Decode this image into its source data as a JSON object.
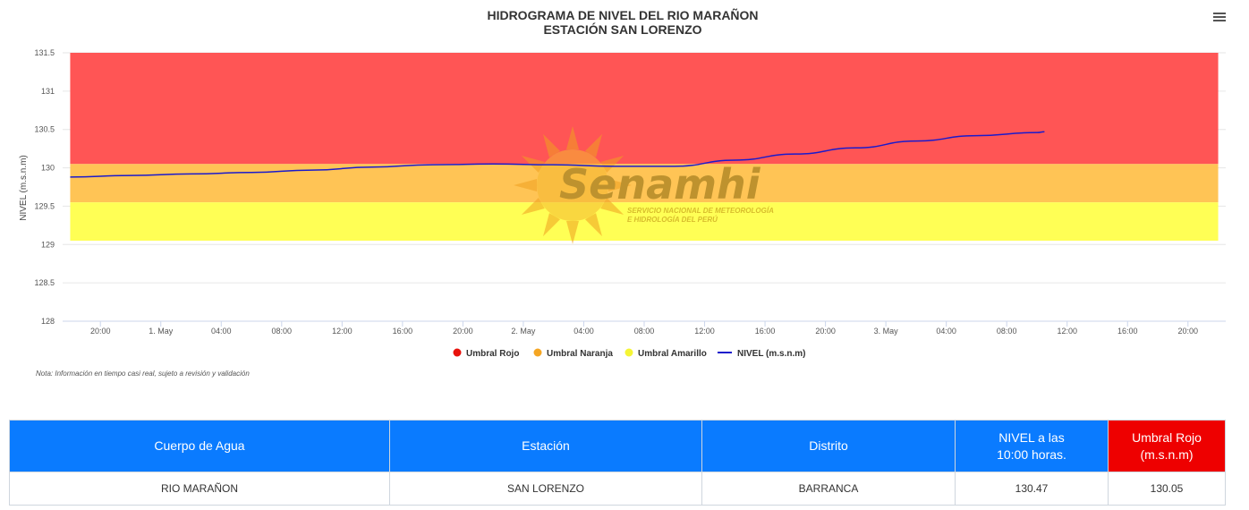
{
  "chart_data": {
    "type": "line",
    "title": "HIDROGRAMA DE NIVEL DEL RIO MARAÑON",
    "subtitle": "ESTACIÓN SAN LORENZO",
    "ylabel": "NIVEL (m.s.n.m)",
    "xlabel": "",
    "ylim": [
      128,
      131.5
    ],
    "yticks": [
      "128",
      "128.5",
      "129",
      "129.5",
      "130",
      "130.5",
      "131",
      "131.5"
    ],
    "xticks": [
      "20:00",
      "1. May",
      "04:00",
      "08:00",
      "12:00",
      "16:00",
      "20:00",
      "2. May",
      "04:00",
      "08:00",
      "12:00",
      "16:00",
      "20:00",
      "3. May",
      "04:00",
      "08:00",
      "12:00",
      "16:00",
      "20:00"
    ],
    "x_axis_hours": [
      20,
      24,
      28,
      32,
      36,
      40,
      44,
      48,
      52,
      56,
      60,
      64,
      68,
      72,
      76,
      80,
      84,
      88,
      92
    ],
    "xlim_hours": [
      17.5,
      94.5
    ],
    "grid": true,
    "legend_placement": "bottom-center",
    "bands": [
      {
        "name": "Umbral Rojo",
        "from": 130.05,
        "to": 131.5,
        "color": "#ff5555"
      },
      {
        "name": "Umbral Naranja",
        "from": 129.55,
        "to": 130.05,
        "color": "#ffc455"
      },
      {
        "name": "Umbral Amarillo",
        "from": 129.05,
        "to": 129.55,
        "color": "#ffff55"
      }
    ],
    "bands_x_hours": [
      18,
      94
    ],
    "series": [
      {
        "name": "NIVEL (m.s.n.m)",
        "color": "#1a1acc",
        "x_hours": [
          18,
          22,
          26,
          30,
          34,
          38,
          42,
          46,
          50,
          54,
          58,
          62,
          66,
          70,
          74,
          78,
          82,
          82.5
        ],
        "values": [
          129.88,
          129.9,
          129.92,
          129.94,
          129.97,
          130.01,
          130.04,
          130.05,
          130.04,
          130.02,
          130.02,
          130.1,
          130.18,
          130.26,
          130.35,
          130.42,
          130.46,
          130.47
        ]
      }
    ],
    "legend": [
      {
        "label": "Umbral Rojo",
        "color": "#e8120c",
        "kind": "dot"
      },
      {
        "label": "Umbral Naranja",
        "color": "#f5a623",
        "kind": "dot"
      },
      {
        "label": "Umbral Amarillo",
        "color": "#f5f535",
        "kind": "dot"
      },
      {
        "label": "NIVEL (m.s.n.m)",
        "color": "#1a1acc",
        "kind": "line"
      }
    ],
    "note": "Nota: Información en tiempo casi real, sujeto a revisión y validación"
  },
  "watermark": {
    "name": "Senamhi",
    "line1": "SERVICIO NACIONAL DE METEOROLOGÍA",
    "line2": "E HIDROLOGÍA DEL PERÚ"
  },
  "icons": {
    "menu": "hamburger-menu-icon"
  },
  "table": {
    "headers": [
      "Cuerpo de Agua",
      "Estación",
      "Distrito",
      "NIVEL a las",
      "10:00 horas.",
      "Umbral Rojo (m.s.n.m)"
    ],
    "row": [
      "RIO MARAÑON",
      "SAN LORENZO",
      "BARRANCA",
      "130.47",
      "130.05"
    ],
    "header_color": "#0a7bff",
    "rojo_color": "#ee0000"
  }
}
